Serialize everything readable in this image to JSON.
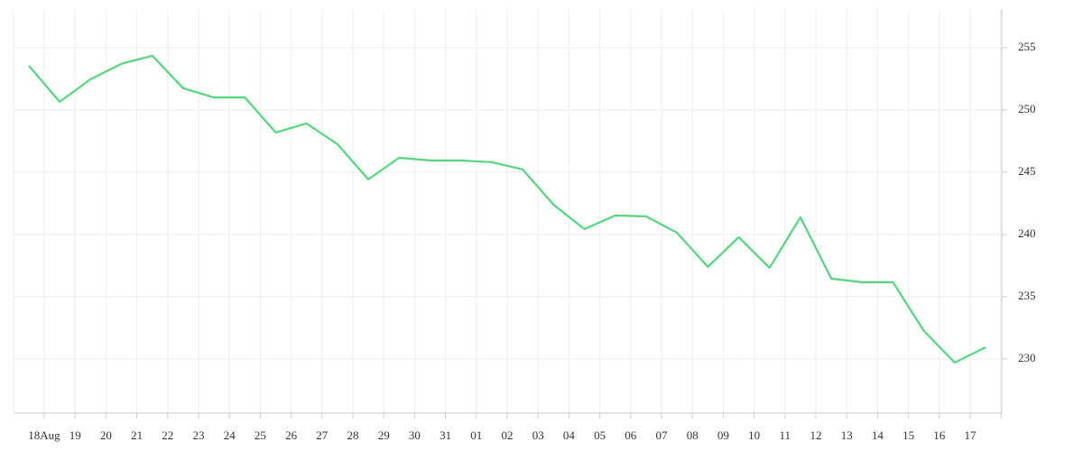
{
  "chart_data": {
    "type": "line",
    "categories": [
      "18Aug",
      "19",
      "20",
      "21",
      "22",
      "23",
      "24",
      "25",
      "26",
      "27",
      "28",
      "29",
      "30",
      "31",
      "01",
      "02",
      "03",
      "04",
      "05",
      "06",
      "07",
      "08",
      "09",
      "10",
      "11",
      "12",
      "13",
      "14",
      "15",
      "16",
      "17",
      null
    ],
    "series": [
      {
        "color": "#55d67e",
        "values": [
          253.55,
          250.65,
          252.46,
          253.7,
          254.35,
          251.74,
          251.0,
          251.0,
          248.19,
          248.91,
          247.25,
          244.42,
          246.16,
          245.94,
          245.94,
          245.8,
          245.22,
          242.39,
          240.43,
          241.52,
          241.45,
          240.14,
          237.39,
          239.78,
          237.32,
          241.38,
          236.45,
          236.16,
          236.16,
          232.25,
          229.71,
          230.94
        ]
      }
    ],
    "ylim": [
      225.65,
      258.1
    ],
    "yticks": [
      230,
      235,
      240,
      245,
      250,
      255
    ],
    "grid": true,
    "y_axis_side": "right"
  }
}
